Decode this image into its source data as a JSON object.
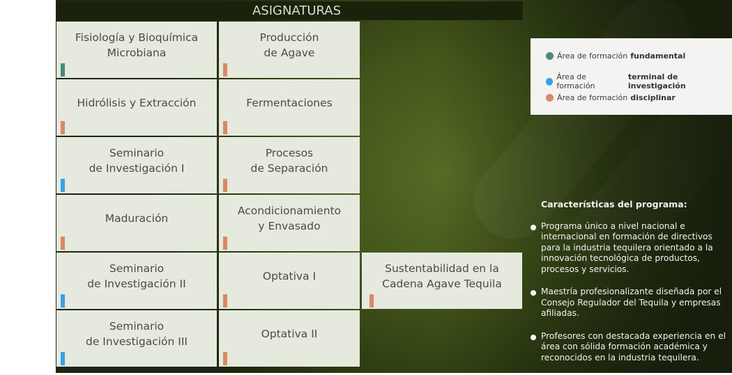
{
  "header": {
    "title": "ASIGNATURAS"
  },
  "colors": {
    "fundamental": "#4a8a7c",
    "terminal": "#3aa0e8",
    "disciplinar": "#d98a62"
  },
  "subjects": [
    {
      "name": "Fisiología y Bioquímica\nMicrobiana",
      "area": "fundamental"
    },
    {
      "name": "Producción\nde Agave",
      "area": "disciplinar"
    },
    {
      "name": "Hidrólisis y Extracción",
      "area": "disciplinar"
    },
    {
      "name": "Fermentaciones",
      "area": "disciplinar"
    },
    {
      "name": "Seminario\nde Investigación I",
      "area": "terminal"
    },
    {
      "name": "Procesos\nde Separación",
      "area": "disciplinar"
    },
    {
      "name": "Maduración",
      "area": "disciplinar"
    },
    {
      "name": "Acondicionamiento\ny Envasado",
      "area": "disciplinar"
    },
    {
      "name": "Seminario\nde Investigación II",
      "area": "terminal"
    },
    {
      "name": "Optativa I",
      "area": "disciplinar"
    },
    {
      "name": "Sustentabilidad en la\nCadena Agave Tequila",
      "area": "disciplinar"
    },
    {
      "name": "Seminario\nde Investigación III",
      "area": "terminal"
    },
    {
      "name": "Optativa II",
      "area": "disciplinar"
    }
  ],
  "legend": [
    {
      "prefix": "Área de formación",
      "bold": "fundamental",
      "area": "fundamental"
    },
    {
      "prefix": "Área de formación",
      "bold": "terminal de investigación",
      "area": "terminal"
    },
    {
      "prefix": "Área de formación",
      "bold": "disciplinar",
      "area": "disciplinar"
    }
  ],
  "characteristics": {
    "title": "Características del programa:",
    "items": [
      "Programa único a nivel nacional e internacional en formación de directivos para la industria tequilera orientado a la innovación tecnológica de productos, procesos y servicios.",
      "Maestría profesionalizante diseñada por el Consejo Regulador del Tequila y empresas afiliadas.",
      "Profesores con destacada experiencia en el área con sólida formación académica y reconocidos en la industria tequilera."
    ]
  }
}
